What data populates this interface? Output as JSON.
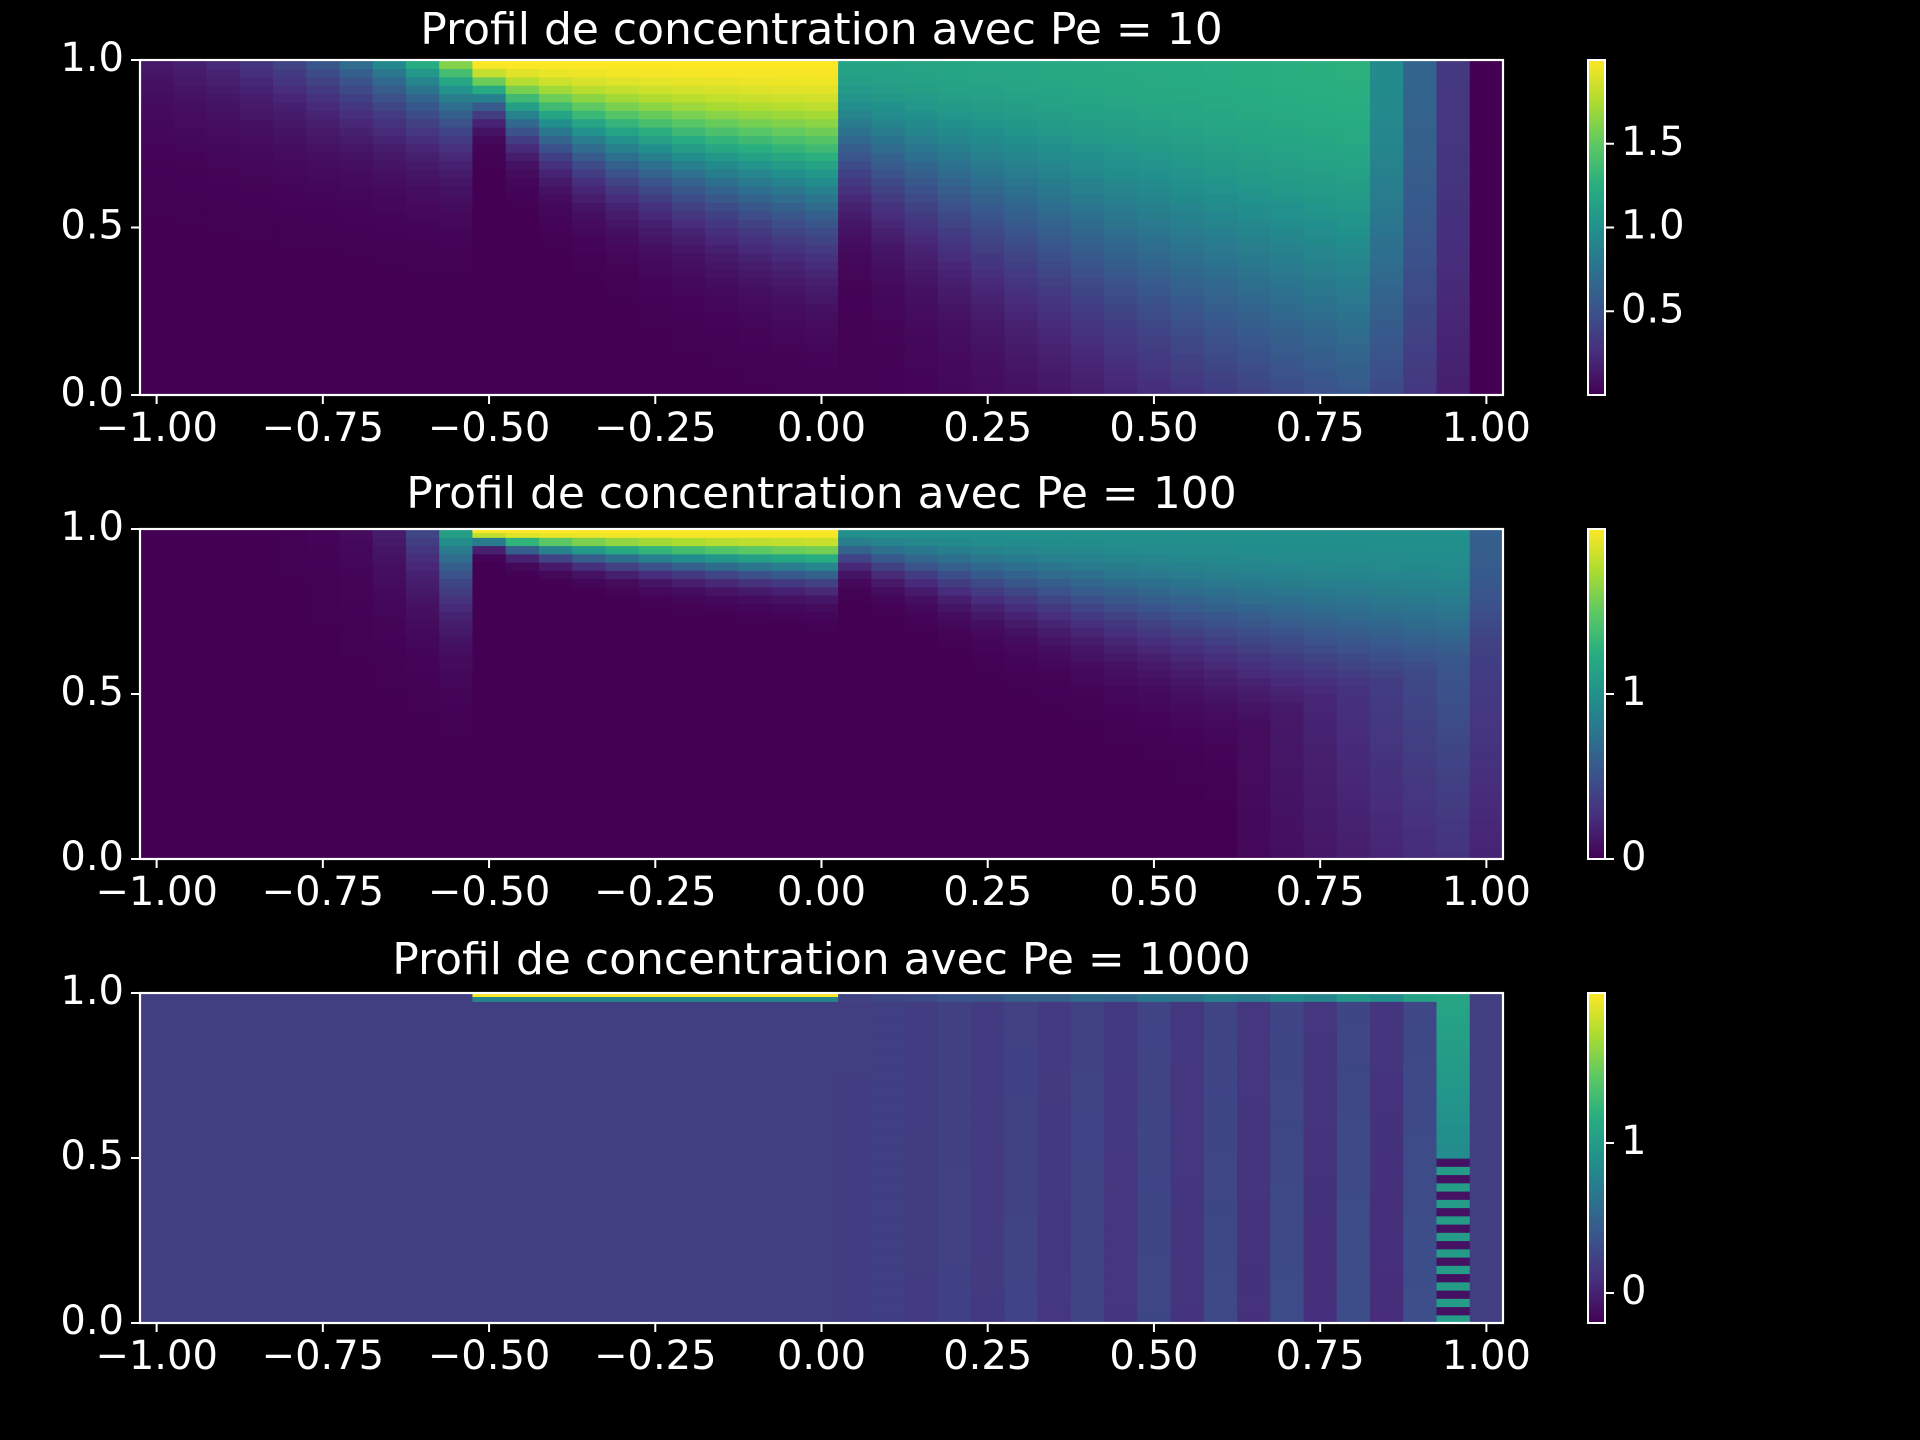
{
  "background_color": "#000000",
  "foreground_color": "#ffffff",
  "colormap": "viridis",
  "chart_data": [
    {
      "type": "heatmap",
      "title": "Profil de concentration avec Pe = 10",
      "pe": 10,
      "xlim": [
        -1.025,
        1.025
      ],
      "ylim": [
        0.0,
        1.0
      ],
      "x_ticks": [
        -1.0,
        -0.75,
        -0.5,
        -0.25,
        0.0,
        0.25,
        0.5,
        0.75,
        1.0
      ],
      "x_tick_labels": [
        "−1.00",
        "−0.75",
        "−0.50",
        "−0.25",
        "0.00",
        "0.25",
        "0.50",
        "0.75",
        "1.00"
      ],
      "y_ticks": [
        0.0,
        0.5,
        1.0
      ],
      "y_tick_labels": [
        "0.0",
        "0.5",
        "1.0"
      ],
      "colorbar": {
        "range": [
          0.0,
          2.0
        ],
        "ticks": [
          0.5,
          1.0,
          1.5
        ],
        "tick_labels": [
          "0.5",
          "1.0",
          "1.5"
        ]
      },
      "source_segment": {
        "x_range": [
          -0.525,
          0.025
        ],
        "y": 1.0,
        "value": 2.0
      },
      "grid": false,
      "xlabel": "",
      "ylabel": ""
    },
    {
      "type": "heatmap",
      "title": "Profil de concentration avec Pe = 100",
      "pe": 100,
      "xlim": [
        -1.025,
        1.025
      ],
      "ylim": [
        0.0,
        1.0
      ],
      "x_ticks": [
        -1.0,
        -0.75,
        -0.5,
        -0.25,
        0.0,
        0.25,
        0.5,
        0.75,
        1.0
      ],
      "x_tick_labels": [
        "−1.00",
        "−0.75",
        "−0.50",
        "−0.25",
        "0.00",
        "0.25",
        "0.50",
        "0.75",
        "1.00"
      ],
      "y_ticks": [
        0.0,
        0.5,
        1.0
      ],
      "y_tick_labels": [
        "0.0",
        "0.5",
        "1.0"
      ],
      "colorbar": {
        "range": [
          0.0,
          2.0
        ],
        "ticks": [
          0,
          1
        ],
        "tick_labels": [
          "0",
          "1"
        ]
      },
      "source_segment": {
        "x_range": [
          -0.525,
          0.025
        ],
        "y": 1.0,
        "value": 2.0
      },
      "grid": false,
      "xlabel": "",
      "ylabel": ""
    },
    {
      "type": "heatmap",
      "title": "Profil de concentration avec Pe = 1000",
      "pe": 1000,
      "xlim": [
        -1.025,
        1.025
      ],
      "ylim": [
        0.0,
        1.0
      ],
      "x_ticks": [
        -1.0,
        -0.75,
        -0.5,
        -0.25,
        0.0,
        0.25,
        0.5,
        0.75,
        1.0
      ],
      "x_tick_labels": [
        "−1.00",
        "−0.75",
        "−0.50",
        "−0.25",
        "0.00",
        "0.25",
        "0.50",
        "0.75",
        "1.00"
      ],
      "y_ticks": [
        0.0,
        0.5,
        1.0
      ],
      "y_tick_labels": [
        "0.0",
        "0.5",
        "1.0"
      ],
      "colorbar": {
        "range": [
          -0.2,
          2.0
        ],
        "ticks": [
          0,
          1
        ],
        "tick_labels": [
          "0",
          "1"
        ]
      },
      "source_segment": {
        "x_range": [
          -0.525,
          0.025
        ],
        "y": 1.0,
        "value": 2.0
      },
      "grid": false,
      "xlabel": "",
      "ylabel": ""
    }
  ]
}
